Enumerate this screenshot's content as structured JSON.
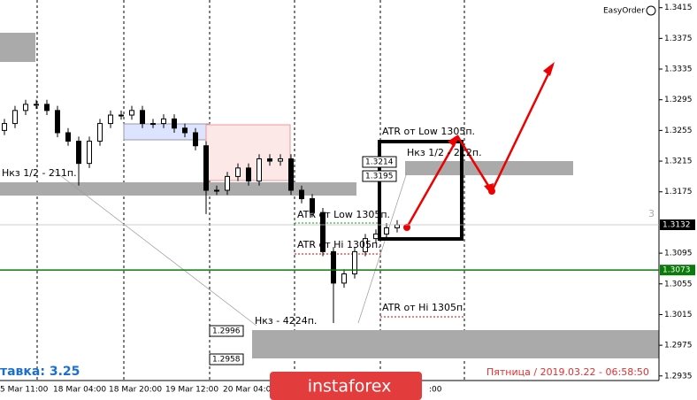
{
  "chart_data": {
    "type": "candlestick",
    "open": [
      1.3255,
      1.3264,
      1.3281,
      1.3289,
      1.3289,
      1.3281,
      1.3252,
      1.3241,
      1.3212,
      1.3241,
      1.3264,
      1.3275,
      1.3275,
      1.3281,
      1.3264,
      1.3264,
      1.327,
      1.3258,
      1.3252,
      1.3235,
      1.3177,
      1.3177,
      1.3195,
      1.3206,
      1.3189,
      1.3218,
      1.3215,
      1.3218,
      1.3177,
      1.3166,
      1.3148,
      1.3097,
      1.3056,
      1.3068,
      1.3097,
      1.3114,
      1.312,
      1.3128
    ],
    "high": [
      1.327,
      1.3287,
      1.3295,
      1.3295,
      1.3295,
      1.3287,
      1.3258,
      1.3247,
      1.3247,
      1.327,
      1.3281,
      1.3281,
      1.3287,
      1.3287,
      1.327,
      1.3276,
      1.3276,
      1.3264,
      1.3258,
      1.3241,
      1.3183,
      1.3201,
      1.3212,
      1.3212,
      1.3224,
      1.3224,
      1.3224,
      1.3224,
      1.3183,
      1.3172,
      1.3154,
      1.3103,
      1.3074,
      1.3103,
      1.312,
      1.3126,
      1.3134,
      1.3138
    ],
    "low": [
      1.3249,
      1.3258,
      1.3275,
      1.3283,
      1.3275,
      1.3246,
      1.3235,
      1.3183,
      1.3206,
      1.3235,
      1.3258,
      1.3269,
      1.3269,
      1.3258,
      1.3258,
      1.3258,
      1.3252,
      1.3246,
      1.3229,
      1.3146,
      1.3171,
      1.3171,
      1.3189,
      1.3183,
      1.3183,
      1.3209,
      1.3209,
      1.3171,
      1.316,
      1.3142,
      1.3091,
      1.3004,
      1.305,
      1.3062,
      1.3091,
      1.3108,
      1.3114,
      1.3122
    ],
    "close": [
      1.3264,
      1.3281,
      1.3289,
      1.3289,
      1.3281,
      1.3252,
      1.3241,
      1.3212,
      1.3241,
      1.3264,
      1.3275,
      1.3275,
      1.3281,
      1.3264,
      1.3264,
      1.327,
      1.3258,
      1.3252,
      1.3235,
      1.3177,
      1.3177,
      1.3195,
      1.3206,
      1.3189,
      1.3218,
      1.3215,
      1.3218,
      1.3177,
      1.3166,
      1.3148,
      1.3097,
      1.3056,
      1.3068,
      1.3097,
      1.3114,
      1.312,
      1.3128,
      1.3132
    ],
    "ylim": [
      1.2929,
      1.3425
    ],
    "yticks": [
      1.2935,
      1.2975,
      1.3015,
      1.3055,
      1.3095,
      1.3175,
      1.3215,
      1.3255,
      1.3295,
      1.3335,
      1.3375,
      1.3415
    ],
    "last_price": 1.3132,
    "support_level": 1.3073,
    "price_boxes": [
      1.3214,
      1.3195,
      1.2996,
      1.2958
    ],
    "x_labels": [
      "5 Mar 11:00",
      "18 Mar 04:00",
      "18 Mar 20:00",
      "19 Mar 12:00",
      "20 Mar 04:00",
      ":00"
    ],
    "annotations": [
      "EasyOrder",
      "Нкз 1/2 - 211п.",
      "ATR от Low 1305п.",
      "Нкз 1/2 - 212п.",
      "ATR от Low 1305п.",
      "ATR от Hi 1305п.",
      "ATR от Hi 1305п.",
      "Нкз - 4224п.",
      "тавка: 3.25",
      "Пятница / 2019.03.22 - 06:58:50",
      "instaforex",
      "3"
    ]
  }
}
